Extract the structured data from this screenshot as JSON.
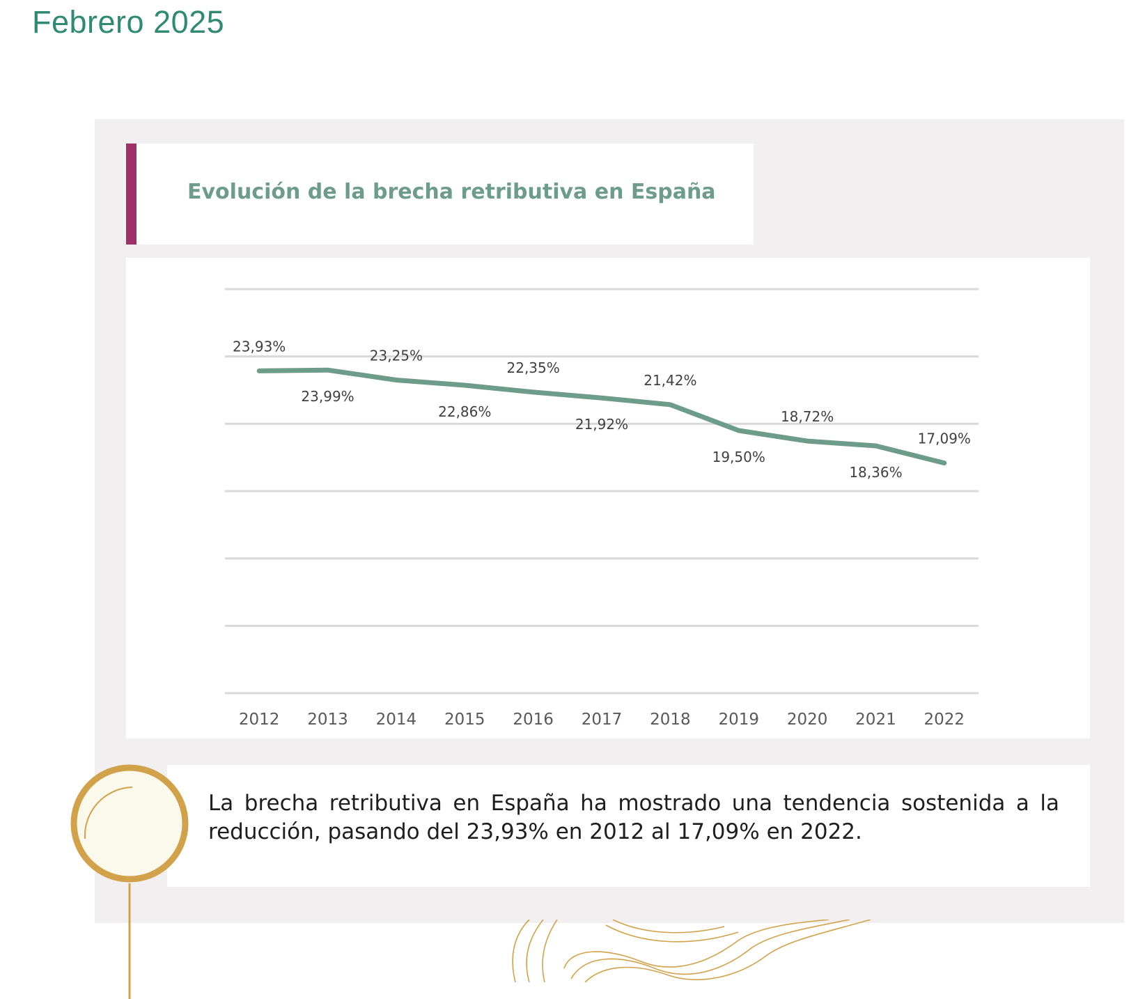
{
  "header": {
    "date": "Febrero 2025"
  },
  "chart_title": "Evolución de la brecha retributiva en España",
  "summary": "La brecha retributiva en España ha mostrado una tendencia sostenida a la reducción, pasando del 23,93% en 2012 al 17,09% en 2022.",
  "colors": {
    "line": "#6e9c8b",
    "accent": "#a0306a",
    "gold": "#d2a24a",
    "title": "#6e9c8b"
  },
  "chart_data": {
    "type": "line",
    "title": "Evolución de la brecha retributiva en España",
    "categories": [
      "2012",
      "2013",
      "2014",
      "2015",
      "2016",
      "2017",
      "2018",
      "2019",
      "2020",
      "2021",
      "2022"
    ],
    "series": [
      {
        "values": [
          23.93,
          23.99,
          23.25,
          22.86,
          22.35,
          21.92,
          21.42,
          19.5,
          18.72,
          18.36,
          17.09
        ]
      }
    ],
    "data_labels": [
      "23,93%",
      "23,99%",
      "23,25%",
      "22,86%",
      "22,35%",
      "21,92%",
      "21,42%",
      "19,50%",
      "18,72%",
      "18,36%",
      "17,09%"
    ],
    "ylim": [
      0,
      30
    ],
    "y_gridlines": [
      0,
      5,
      10,
      15,
      20,
      25,
      30
    ],
    "grid": true,
    "legend": "none"
  }
}
